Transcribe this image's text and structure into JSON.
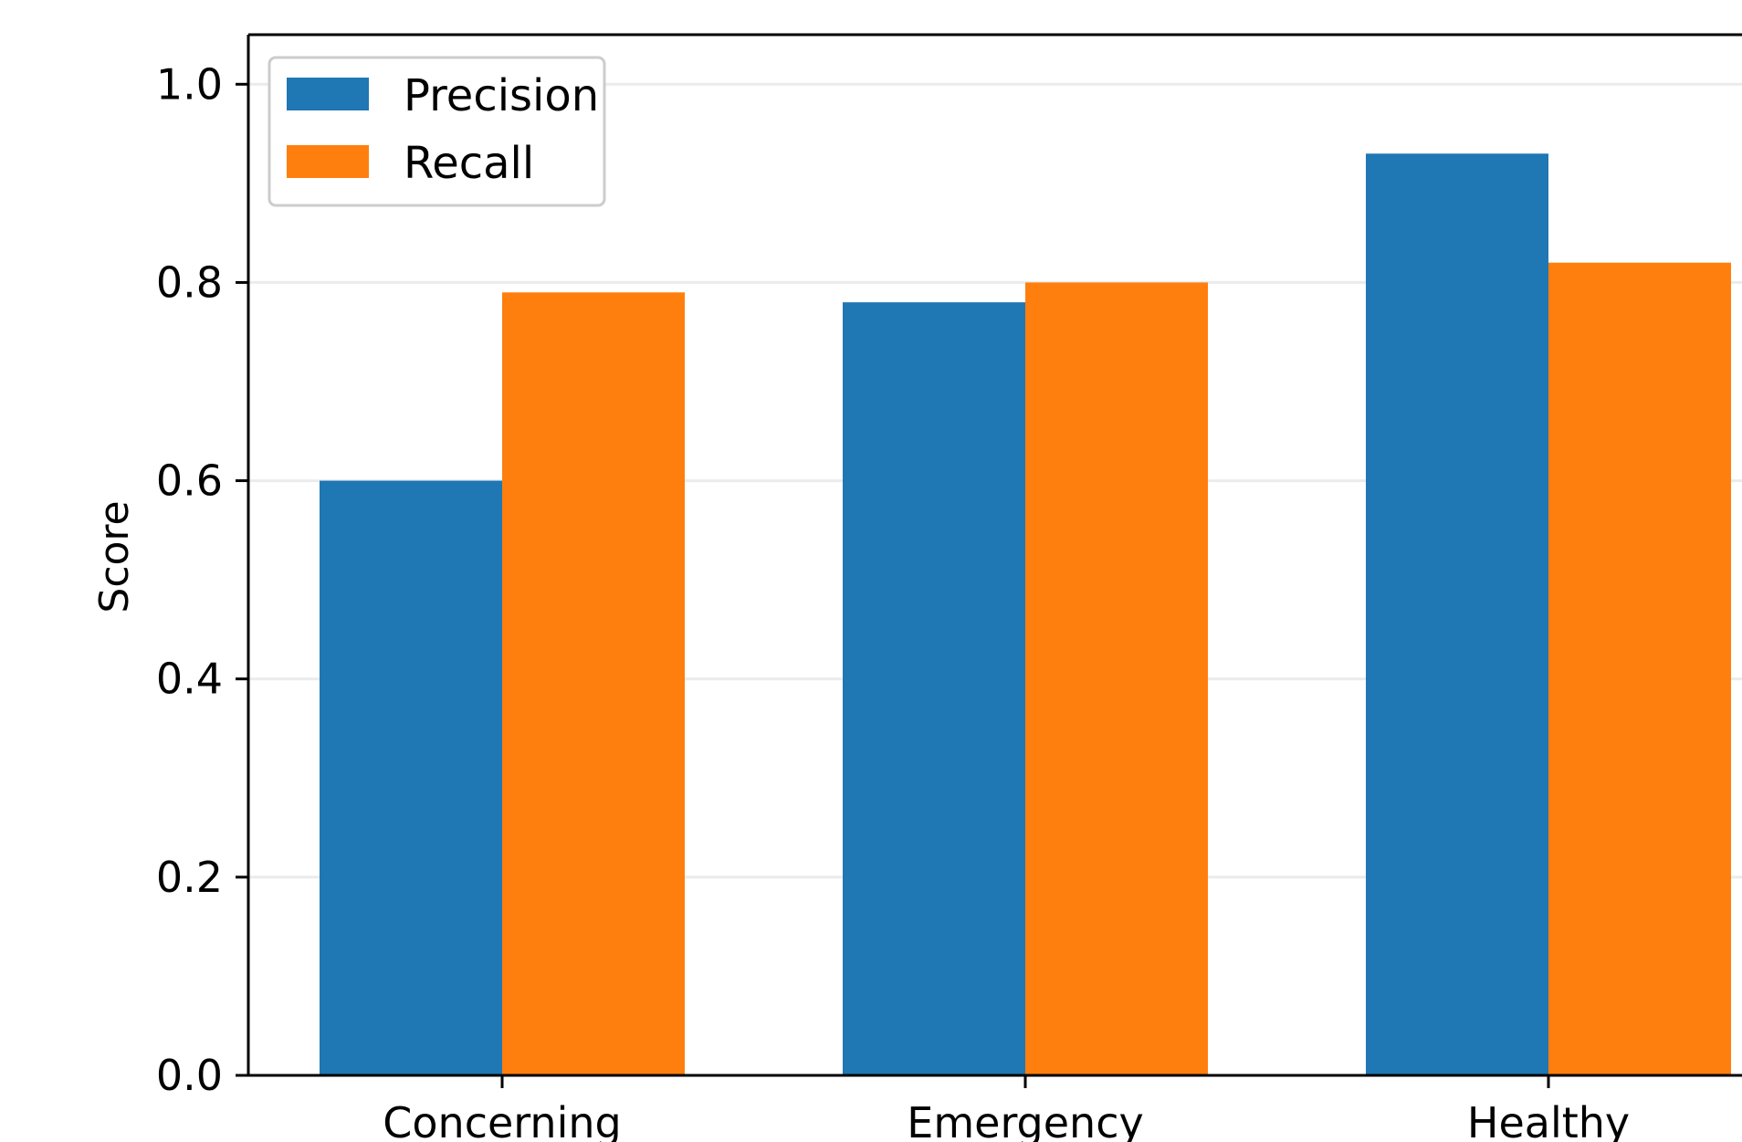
{
  "chart_data": {
    "type": "bar",
    "categories": [
      "Concerning",
      "Emergency",
      "Healthy"
    ],
    "series": [
      {
        "name": "Precision",
        "values": [
          0.6,
          0.78,
          0.93
        ],
        "color": "#1f77b4"
      },
      {
        "name": "Recall",
        "values": [
          0.79,
          0.8,
          0.82
        ],
        "color": "#ff7f0e"
      }
    ],
    "ylabel": "Score",
    "ylim": [
      0,
      1.05
    ],
    "yticks": [
      "0.0",
      "0.2",
      "0.4",
      "0.6",
      "0.8",
      "1.0"
    ],
    "grid": "horizontal",
    "legend_position": "top-left"
  }
}
